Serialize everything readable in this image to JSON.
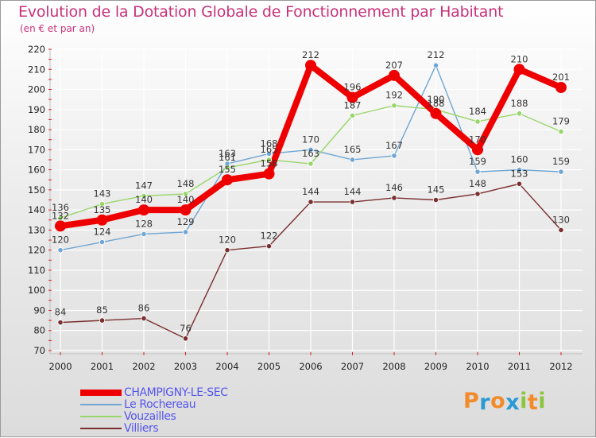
{
  "title": "Evolution de la Dotation Globale de Fonctionnement par Habitant",
  "subtitle": "(en € et par an)",
  "brand": {
    "letters": [
      "P",
      "r",
      "o",
      "x",
      "i",
      "t",
      "i"
    ],
    "colors": [
      "#f28b2b",
      "#2a9ad4",
      "#f28b2b",
      "#2a9ad4",
      "#8cc63f",
      "#f28b2b",
      "#8cc63f"
    ]
  },
  "chart_data": {
    "type": "line",
    "title": "Evolution de la Dotation Globale de Fonctionnement par Habitant",
    "subtitle": "(en € et par an)",
    "xlabel": "",
    "ylabel": "",
    "ylim": [
      70,
      220
    ],
    "yticks": [
      70,
      80,
      90,
      100,
      110,
      120,
      130,
      140,
      150,
      160,
      170,
      180,
      190,
      200,
      210,
      220
    ],
    "x": [
      "2000",
      "2001",
      "2002",
      "2003",
      "2004",
      "2005",
      "2006",
      "2007",
      "2008",
      "2009",
      "2010",
      "2011",
      "2012"
    ],
    "grid": true,
    "legend_position": "bottom-left",
    "series": [
      {
        "name": "CHAMPIGNY-LE-SEC",
        "color": "#ee0000",
        "thick": true,
        "values": [
          132,
          135,
          140,
          140,
          155,
          158,
          212,
          196,
          207,
          188,
          170,
          210,
          201
        ],
        "labels": [
          "132",
          "135",
          "140",
          "140",
          "155",
          "158",
          "212",
          "196",
          "207",
          "188",
          "170",
          "210",
          "201"
        ]
      },
      {
        "name": "Le Rochereau",
        "color": "#6fa6d4",
        "thick": false,
        "values": [
          120,
          124,
          128,
          129,
          163,
          168,
          170,
          165,
          167,
          212,
          159,
          160,
          159
        ],
        "labels": [
          "120",
          "124",
          "128",
          "129",
          "163",
          "168",
          "170",
          "165",
          "167",
          "212",
          "159",
          "160",
          "159"
        ]
      },
      {
        "name": "Vouzailles",
        "color": "#99d66a",
        "thick": false,
        "values": [
          136,
          143,
          147,
          148,
          161,
          165,
          163,
          187,
          192,
          190,
          184,
          188,
          179
        ],
        "labels": [
          "136",
          "143",
          "147",
          "148",
          "161",
          "165",
          "163",
          "187",
          "192",
          "190",
          "184",
          "188",
          "179"
        ]
      },
      {
        "name": "Villiers",
        "color": "#7a3030",
        "thick": false,
        "values": [
          84,
          85,
          86,
          76,
          120,
          122,
          144,
          144,
          146,
          145,
          148,
          153,
          130
        ],
        "labels": [
          "84",
          "85",
          "86",
          "76",
          "120",
          "122",
          "144",
          "144",
          "146",
          "145",
          "148",
          "153",
          "130"
        ]
      }
    ]
  }
}
